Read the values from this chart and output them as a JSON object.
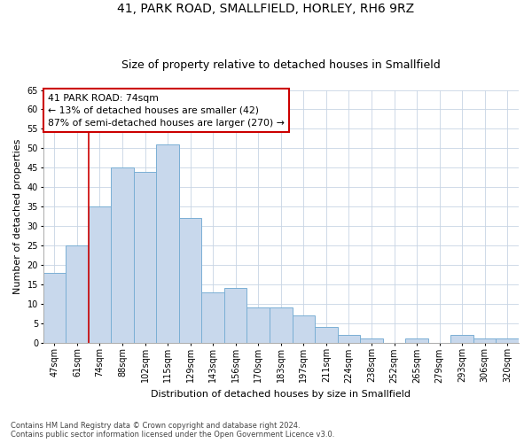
{
  "title1": "41, PARK ROAD, SMALLFIELD, HORLEY, RH6 9RZ",
  "title2": "Size of property relative to detached houses in Smallfield",
  "xlabel": "Distribution of detached houses by size in Smallfield",
  "ylabel": "Number of detached properties",
  "categories": [
    "47sqm",
    "61sqm",
    "74sqm",
    "88sqm",
    "102sqm",
    "115sqm",
    "129sqm",
    "143sqm",
    "156sqm",
    "170sqm",
    "183sqm",
    "197sqm",
    "211sqm",
    "224sqm",
    "238sqm",
    "252sqm",
    "265sqm",
    "279sqm",
    "293sqm",
    "306sqm",
    "320sqm"
  ],
  "values": [
    18,
    25,
    35,
    45,
    44,
    51,
    32,
    13,
    14,
    9,
    9,
    7,
    4,
    2,
    1,
    0,
    1,
    0,
    2,
    1,
    1
  ],
  "bar_color": "#c8d8ec",
  "bar_edge_color": "#7aafd4",
  "highlight_index": 2,
  "highlight_color": "#cc0000",
  "annotation_text": "41 PARK ROAD: 74sqm\n← 13% of detached houses are smaller (42)\n87% of semi-detached houses are larger (270) →",
  "annotation_box_color": "#ffffff",
  "annotation_box_edge": "#cc0000",
  "ylim": [
    0,
    65
  ],
  "yticks": [
    0,
    5,
    10,
    15,
    20,
    25,
    30,
    35,
    40,
    45,
    50,
    55,
    60,
    65
  ],
  "footer": "Contains HM Land Registry data © Crown copyright and database right 2024.\nContains public sector information licensed under the Open Government Licence v3.0.",
  "bg_color": "#ffffff",
  "grid_color": "#c8d4e4",
  "title1_fontsize": 10,
  "title2_fontsize": 9,
  "axis_fontsize": 8,
  "tick_fontsize": 7
}
